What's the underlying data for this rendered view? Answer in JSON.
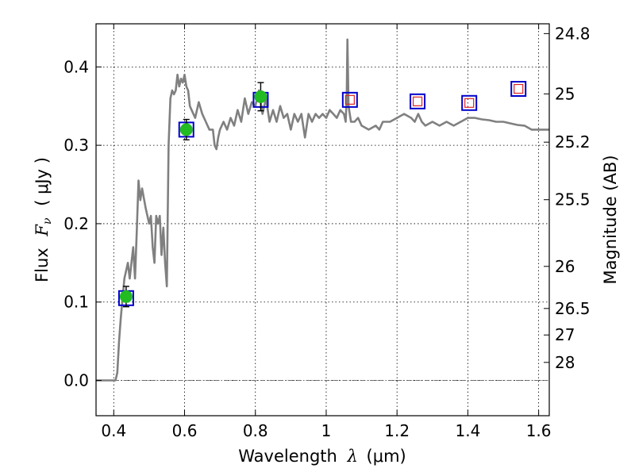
{
  "chart_data": {
    "type": "line",
    "xlabel": {
      "prefix": "Wavelength",
      "symbol": "λ",
      "unit": "(μm)"
    },
    "ylabel": {
      "prefix": "Flux",
      "symbol": "F",
      "subscript": "ν",
      "unit": "( μJy )"
    },
    "y2label": "Magnitude (AB)",
    "xlim": [
      0.35,
      1.63
    ],
    "ylim": [
      -0.045,
      0.455
    ],
    "x_ticks": [
      0.4,
      0.6,
      0.8,
      1.0,
      1.2,
      1.4,
      1.6
    ],
    "x_tick_labels": [
      "0.4",
      "0.6",
      "0.8",
      "1",
      "1.2",
      "1.4",
      "1.6"
    ],
    "y_ticks": [
      0.0,
      0.1,
      0.2,
      0.3,
      0.4
    ],
    "y_tick_labels": [
      "0.0",
      "0.1",
      "0.2",
      "0.3",
      "0.4"
    ],
    "right_ticks": [
      {
        "label": "24.8",
        "flux": 0.4425
      },
      {
        "label": "25",
        "flux": 0.3656
      },
      {
        "label": "25.2",
        "flux": 0.304
      },
      {
        "label": "25.5",
        "flux": 0.2306
      },
      {
        "label": "26",
        "flux": 0.1455
      },
      {
        "label": "26.5",
        "flux": 0.0918
      },
      {
        "label": "27",
        "flux": 0.058
      },
      {
        "label": "28",
        "flux": 0.023
      }
    ],
    "grid": true,
    "zero_line": true,
    "colors": {
      "model": "#808080",
      "box": "#0000cc",
      "inner_box": "#dd2222",
      "point": "#22bb22",
      "errorbar": "#000000",
      "zero_line": "#666666"
    },
    "model_spectrum": {
      "x": [
        0.35,
        0.405,
        0.41,
        0.415,
        0.42,
        0.43,
        0.44,
        0.445,
        0.45,
        0.455,
        0.46,
        0.465,
        0.47,
        0.475,
        0.48,
        0.49,
        0.5,
        0.505,
        0.51,
        0.515,
        0.52,
        0.525,
        0.53,
        0.535,
        0.54,
        0.545,
        0.55,
        0.555,
        0.56,
        0.565,
        0.57,
        0.575,
        0.58,
        0.585,
        0.59,
        0.595,
        0.6,
        0.605,
        0.61,
        0.615,
        0.62,
        0.63,
        0.64,
        0.65,
        0.66,
        0.67,
        0.68,
        0.685,
        0.69,
        0.695,
        0.7,
        0.71,
        0.72,
        0.73,
        0.74,
        0.75,
        0.76,
        0.77,
        0.78,
        0.79,
        0.8,
        0.81,
        0.82,
        0.83,
        0.84,
        0.85,
        0.86,
        0.87,
        0.88,
        0.89,
        0.9,
        0.91,
        0.92,
        0.93,
        0.94,
        0.95,
        0.96,
        0.97,
        0.98,
        0.99,
        1.0,
        1.01,
        1.02,
        1.03,
        1.04,
        1.05,
        1.055,
        1.058,
        1.06,
        1.063,
        1.07,
        1.08,
        1.09,
        1.1,
        1.12,
        1.14,
        1.15,
        1.16,
        1.18,
        1.2,
        1.22,
        1.24,
        1.25,
        1.26,
        1.27,
        1.28,
        1.3,
        1.32,
        1.34,
        1.36,
        1.38,
        1.4,
        1.42,
        1.44,
        1.46,
        1.48,
        1.5,
        1.52,
        1.54,
        1.56,
        1.58,
        1.6,
        1.63
      ],
      "y": [
        0.0,
        0.0,
        0.01,
        0.05,
        0.08,
        0.13,
        0.15,
        0.13,
        0.15,
        0.17,
        0.13,
        0.19,
        0.255,
        0.23,
        0.245,
        0.22,
        0.2,
        0.21,
        0.17,
        0.15,
        0.21,
        0.2,
        0.21,
        0.16,
        0.195,
        0.15,
        0.12,
        0.3,
        0.36,
        0.37,
        0.365,
        0.37,
        0.39,
        0.375,
        0.385,
        0.38,
        0.39,
        0.375,
        0.37,
        0.35,
        0.345,
        0.335,
        0.355,
        0.34,
        0.33,
        0.32,
        0.32,
        0.3,
        0.295,
        0.31,
        0.32,
        0.33,
        0.32,
        0.335,
        0.325,
        0.345,
        0.33,
        0.36,
        0.34,
        0.355,
        0.35,
        0.37,
        0.34,
        0.36,
        0.33,
        0.345,
        0.33,
        0.35,
        0.335,
        0.34,
        0.32,
        0.34,
        0.33,
        0.34,
        0.31,
        0.34,
        0.33,
        0.34,
        0.335,
        0.34,
        0.335,
        0.345,
        0.34,
        0.335,
        0.345,
        0.34,
        0.33,
        0.36,
        0.435,
        0.35,
        0.33,
        0.33,
        0.335,
        0.325,
        0.32,
        0.325,
        0.32,
        0.33,
        0.33,
        0.335,
        0.34,
        0.335,
        0.33,
        0.34,
        0.33,
        0.325,
        0.33,
        0.325,
        0.33,
        0.325,
        0.33,
        0.335,
        0.335,
        0.333,
        0.332,
        0.33,
        0.33,
        0.328,
        0.326,
        0.325,
        0.32,
        0.32,
        0.32
      ]
    },
    "boxes": [
      {
        "x": 0.435,
        "y": 0.105
      },
      {
        "x": 0.605,
        "y": 0.32
      },
      {
        "x": 0.815,
        "y": 0.358
      },
      {
        "x": 1.067,
        "y": 0.358
      },
      {
        "x": 1.258,
        "y": 0.356
      },
      {
        "x": 1.404,
        "y": 0.354
      },
      {
        "x": 1.543,
        "y": 0.372
      }
    ],
    "inner_boxes": [
      {
        "x": 1.067,
        "y": 0.358
      },
      {
        "x": 1.258,
        "y": 0.356
      },
      {
        "x": 1.404,
        "y": 0.354
      },
      {
        "x": 1.543,
        "y": 0.372
      }
    ],
    "observed_points": [
      {
        "x": 0.435,
        "y": 0.107,
        "yerr": 0.013
      },
      {
        "x": 0.605,
        "y": 0.32,
        "yerr": 0.013
      },
      {
        "x": 0.815,
        "y": 0.362,
        "yerr": 0.018
      }
    ]
  }
}
